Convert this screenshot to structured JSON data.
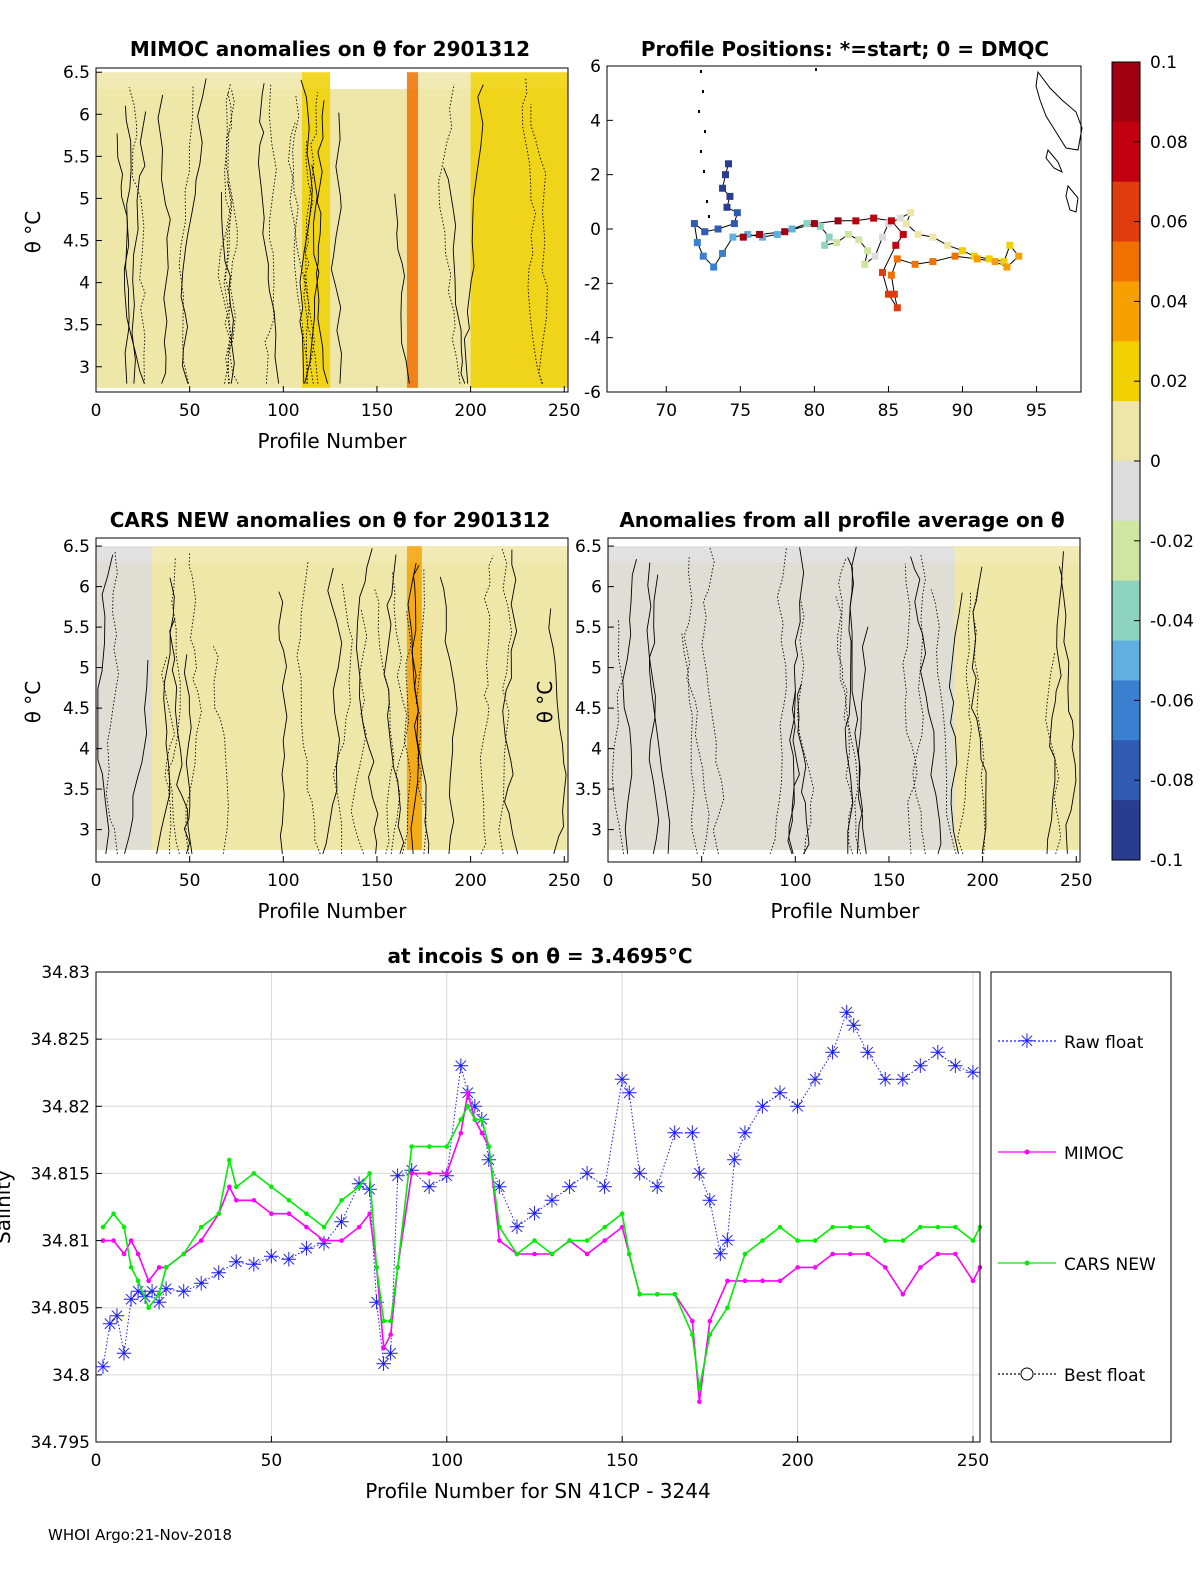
{
  "footer": "WHOI Argo:21-Nov-2018",
  "colorbar": {
    "ticks": [
      "0.1",
      "0.08",
      "0.06",
      "0.04",
      "0.02",
      "0",
      "-0.02",
      "-0.04",
      "-0.06",
      "-0.08",
      "-0.1"
    ],
    "range": [
      -0.1,
      0.1
    ],
    "colors": [
      "#2a3c8f",
      "#2f5bb3",
      "#3a7fd0",
      "#5fb0e0",
      "#8ed2c0",
      "#cfe6a0",
      "#dcdcdc",
      "#eee6a8",
      "#f0d000",
      "#f5a000",
      "#f07000",
      "#e03c10",
      "#c00010",
      "#a00010"
    ]
  },
  "chart_data": [
    {
      "type": "heatmap",
      "title": "MIMOC anomalies on θ  for 2901312",
      "xlabel": "Profile Number",
      "ylabel": "θ °C",
      "xlim": [
        0,
        252
      ],
      "ylim": [
        2.7,
        6.55
      ],
      "xticks": [
        "0",
        "50",
        "100",
        "150",
        "200",
        "250"
      ],
      "xtick_values": [
        0,
        50,
        100,
        150,
        200,
        250
      ],
      "yticks": [
        "3",
        "3.5",
        "4",
        "4.5",
        "5",
        "5.5",
        "6",
        "6.5"
      ],
      "ytick_values": [
        3,
        3.5,
        4,
        4.5,
        5,
        5.5,
        6,
        6.5
      ],
      "bands": [
        {
          "x0": 0,
          "x1": 110,
          "value": 0.0
        },
        {
          "x0": 110,
          "x1": 125,
          "value": 0.018
        },
        {
          "x0": 166,
          "x1": 172,
          "value": 0.045
        },
        {
          "x0": 172,
          "x1": 200,
          "value": 0.012
        },
        {
          "x0": 200,
          "x1": 252,
          "value": 0.025
        }
      ]
    },
    {
      "type": "scatter",
      "title": "Profile Positions: *=start; 0 = DMQC",
      "xlim": [
        66,
        98
      ],
      "ylim": [
        -6,
        6
      ],
      "xticks": [
        "70",
        "75",
        "80",
        "85",
        "90",
        "95"
      ],
      "xtick_values": [
        70,
        75,
        80,
        85,
        90,
        95
      ],
      "yticks": [
        "6",
        "4",
        "2",
        "0",
        "-2",
        "-4",
        "-6"
      ],
      "ytick_values": [
        6,
        4,
        2,
        0,
        -2,
        -4,
        -6
      ],
      "track": [
        [
          74.2,
          2.4
        ],
        [
          74.0,
          2.0
        ],
        [
          73.8,
          1.5
        ],
        [
          74.3,
          1.2
        ],
        [
          74.1,
          0.8
        ],
        [
          74.8,
          0.6
        ],
        [
          74.6,
          0.2
        ],
        [
          73.5,
          0.0
        ],
        [
          72.6,
          -0.1
        ],
        [
          71.9,
          0.2
        ],
        [
          72.1,
          -0.5
        ],
        [
          72.5,
          -1.0
        ],
        [
          73.2,
          -1.4
        ],
        [
          73.8,
          -0.9
        ],
        [
          74.5,
          -0.3
        ],
        [
          75.5,
          -0.2
        ],
        [
          76.5,
          -0.3
        ],
        [
          77.5,
          -0.2
        ],
        [
          78.5,
          0.0
        ],
        [
          79.5,
          0.2
        ],
        [
          80.4,
          0.1
        ],
        [
          81.0,
          -0.3
        ],
        [
          80.7,
          -0.6
        ],
        [
          81.5,
          -0.5
        ],
        [
          82.3,
          -0.2
        ],
        [
          83.0,
          -0.4
        ],
        [
          83.6,
          -0.8
        ],
        [
          83.4,
          -1.3
        ],
        [
          84.1,
          -1.0
        ],
        [
          84.6,
          -0.3
        ],
        [
          85.0,
          0.2
        ],
        [
          85.8,
          0.4
        ],
        [
          86.5,
          0.6
        ],
        [
          86.2,
          0.2
        ],
        [
          87.0,
          -0.2
        ],
        [
          88.0,
          -0.3
        ],
        [
          89.0,
          -0.6
        ],
        [
          90.0,
          -0.8
        ],
        [
          90.8,
          -1.0
        ],
        [
          91.8,
          -1.1
        ],
        [
          92.8,
          -1.2
        ],
        [
          93.2,
          -0.6
        ],
        [
          93.8,
          -1.0
        ],
        [
          93.0,
          -1.4
        ],
        [
          92.2,
          -1.2
        ],
        [
          91.0,
          -1.1
        ],
        [
          89.5,
          -1.0
        ],
        [
          88.0,
          -1.2
        ],
        [
          86.8,
          -1.3
        ],
        [
          85.6,
          -1.1
        ],
        [
          85.2,
          -1.7
        ],
        [
          85.4,
          -2.4
        ],
        [
          85.6,
          -2.9
        ],
        [
          85.0,
          -2.4
        ],
        [
          84.6,
          -1.6
        ],
        [
          85.5,
          -0.6
        ],
        [
          86.0,
          -0.2
        ],
        [
          85.2,
          0.3
        ],
        [
          84.0,
          0.4
        ],
        [
          82.8,
          0.3
        ],
        [
          81.6,
          0.3
        ],
        [
          80.0,
          0.2
        ],
        [
          78.0,
          -0.1
        ],
        [
          76.3,
          -0.2
        ],
        [
          75.2,
          -0.3
        ]
      ]
    },
    {
      "type": "heatmap",
      "title": "CARS NEW anomalies on θ for 2901312",
      "xlabel": "Profile Number",
      "ylabel": "θ °C",
      "xlim": [
        0,
        252
      ],
      "ylim": [
        2.6,
        6.6
      ],
      "xticks": [
        "0",
        "50",
        "100",
        "150",
        "200",
        "250"
      ],
      "xtick_values": [
        0,
        50,
        100,
        150,
        200,
        250
      ],
      "yticks": [
        "3",
        "3.5",
        "4",
        "4.5",
        "5",
        "5.5",
        "6",
        "6.5"
      ],
      "ytick_values": [
        3,
        3.5,
        4,
        4.5,
        5,
        5.5,
        6,
        6.5
      ],
      "bands": [
        {
          "x0": 0,
          "x1": 30,
          "value": -0.004
        },
        {
          "x0": 30,
          "x1": 150,
          "value": 0.0
        },
        {
          "x0": 150,
          "x1": 166,
          "value": 0.012
        },
        {
          "x0": 166,
          "x1": 174,
          "value": 0.04
        },
        {
          "x0": 174,
          "x1": 252,
          "value": 0.012
        }
      ]
    },
    {
      "type": "heatmap",
      "title": "Anomalies from all profile average on θ",
      "xlabel": "Profile Number",
      "ylabel": "θ °C",
      "xlim": [
        0,
        252
      ],
      "ylim": [
        2.6,
        6.6
      ],
      "xticks": [
        "0",
        "50",
        "100",
        "150",
        "200",
        "250"
      ],
      "xtick_values": [
        0,
        50,
        100,
        150,
        200,
        250
      ],
      "yticks": [
        "3",
        "3.5",
        "4",
        "4.5",
        "5",
        "5.5",
        "6",
        "6.5"
      ],
      "ytick_values": [
        3,
        3.5,
        4,
        4.5,
        5,
        5.5,
        6,
        6.5
      ],
      "bands": [
        {
          "x0": 0,
          "x1": 40,
          "value": -0.008
        },
        {
          "x0": 40,
          "x1": 160,
          "value": -0.002
        },
        {
          "x0": 160,
          "x1": 185,
          "value": -0.01
        },
        {
          "x0": 185,
          "x1": 252,
          "value": 0.004
        }
      ]
    },
    {
      "type": "line",
      "title": "at incois S on θ = 3.4695°C",
      "xlabel": "Profile Number for SN 41CP - 3244",
      "ylabel": "Salinity",
      "xlim": [
        0,
        252
      ],
      "ylim": [
        34.795,
        34.83
      ],
      "xticks": [
        "0",
        "50",
        "100",
        "150",
        "200",
        "250"
      ],
      "xtick_values": [
        0,
        50,
        100,
        150,
        200,
        250
      ],
      "yticks": [
        "34.795",
        "34.8",
        "34.805",
        "34.81",
        "34.815",
        "34.82",
        "34.825",
        "34.83"
      ],
      "ytick_values": [
        34.795,
        34.8,
        34.805,
        34.81,
        34.815,
        34.82,
        34.825,
        34.83
      ],
      "legend": [
        "Raw float",
        "MIMOC",
        "CARS NEW",
        "Best float"
      ],
      "series": [
        {
          "name": "Raw float",
          "color": "#1a1aff",
          "marker": "star",
          "dotted": true,
          "x": [
            2,
            4,
            6,
            8,
            10,
            12,
            14,
            16,
            18,
            20,
            25,
            30,
            35,
            40,
            45,
            50,
            55,
            60,
            65,
            70,
            75,
            78,
            80,
            82,
            84,
            86,
            90,
            95,
            100,
            104,
            106,
            108,
            110,
            112,
            115,
            120,
            125,
            130,
            135,
            140,
            145,
            150,
            152,
            155,
            160,
            165,
            170,
            172,
            175,
            178,
            180,
            182,
            185,
            190,
            195,
            200,
            205,
            210,
            214,
            216,
            220,
            225,
            230,
            235,
            240,
            245,
            250
          ],
          "values": [
            34.8006,
            34.8038,
            34.8044,
            34.8016,
            34.8056,
            34.8062,
            34.8058,
            34.8062,
            34.8054,
            34.8064,
            34.8062,
            34.8068,
            34.8076,
            34.8084,
            34.8082,
            34.8088,
            34.8086,
            34.8094,
            34.8098,
            34.8114,
            34.8142,
            34.8138,
            34.8054,
            34.8008,
            34.8016,
            34.8148,
            34.8152,
            34.814,
            34.8148,
            34.823,
            34.821,
            34.82,
            34.819,
            34.816,
            34.814,
            34.811,
            34.812,
            34.813,
            34.814,
            34.815,
            34.814,
            34.822,
            34.821,
            34.815,
            34.814,
            34.818,
            34.818,
            34.815,
            34.813,
            34.809,
            34.81,
            34.816,
            34.818,
            34.82,
            34.821,
            34.82,
            34.822,
            34.824,
            34.827,
            34.826,
            34.824,
            34.822,
            34.822,
            34.823,
            34.824,
            34.823,
            34.8225
          ]
        },
        {
          "name": "MIMOC",
          "color": "#ff00ff",
          "marker": "dot",
          "dotted": false,
          "x": [
            2,
            5,
            8,
            10,
            12,
            15,
            18,
            20,
            25,
            30,
            35,
            38,
            40,
            45,
            50,
            55,
            60,
            65,
            70,
            75,
            78,
            80,
            82,
            84,
            86,
            90,
            95,
            100,
            104,
            106,
            108,
            110,
            112,
            115,
            120,
            125,
            130,
            135,
            140,
            145,
            150,
            152,
            155,
            160,
            165,
            170,
            172,
            175,
            180,
            185,
            190,
            195,
            200,
            205,
            210,
            215,
            220,
            225,
            230,
            235,
            240,
            245,
            250,
            252
          ],
          "values": [
            34.81,
            34.81,
            34.809,
            34.81,
            34.809,
            34.807,
            34.808,
            34.808,
            34.809,
            34.81,
            34.812,
            34.814,
            34.813,
            34.813,
            34.812,
            34.812,
            34.811,
            34.81,
            34.81,
            34.811,
            34.812,
            34.808,
            34.802,
            34.803,
            34.808,
            34.815,
            34.815,
            34.815,
            34.818,
            34.821,
            34.819,
            34.818,
            34.817,
            34.81,
            34.809,
            34.809,
            34.809,
            34.81,
            34.809,
            34.81,
            34.811,
            34.809,
            34.806,
            34.806,
            34.806,
            34.804,
            34.798,
            34.804,
            34.807,
            34.807,
            34.807,
            34.807,
            34.808,
            34.808,
            34.809,
            34.809,
            34.809,
            34.808,
            34.806,
            34.808,
            34.809,
            34.809,
            34.807,
            34.808
          ]
        },
        {
          "name": "CARS NEW",
          "color": "#00ee00",
          "marker": "dot",
          "dotted": false,
          "x": [
            2,
            5,
            8,
            10,
            12,
            15,
            18,
            20,
            25,
            30,
            35,
            38,
            40,
            45,
            50,
            55,
            60,
            65,
            70,
            75,
            78,
            80,
            82,
            84,
            86,
            90,
            95,
            100,
            104,
            106,
            108,
            110,
            112,
            115,
            120,
            125,
            130,
            135,
            140,
            145,
            150,
            152,
            155,
            160,
            165,
            170,
            172,
            175,
            180,
            185,
            190,
            195,
            200,
            205,
            210,
            215,
            220,
            225,
            230,
            235,
            240,
            245,
            250,
            252
          ],
          "values": [
            34.811,
            34.812,
            34.811,
            34.808,
            34.807,
            34.805,
            34.806,
            34.808,
            34.809,
            34.811,
            34.812,
            34.816,
            34.814,
            34.815,
            34.814,
            34.813,
            34.812,
            34.811,
            34.813,
            34.814,
            34.815,
            34.808,
            34.804,
            34.804,
            34.808,
            34.817,
            34.817,
            34.817,
            34.819,
            34.82,
            34.819,
            34.819,
            34.817,
            34.811,
            34.809,
            34.81,
            34.809,
            34.81,
            34.81,
            34.811,
            34.812,
            34.809,
            34.806,
            34.806,
            34.806,
            34.803,
            34.799,
            34.803,
            34.805,
            34.809,
            34.81,
            34.811,
            34.81,
            34.81,
            34.811,
            34.811,
            34.811,
            34.81,
            34.81,
            34.811,
            34.811,
            34.811,
            34.81,
            34.811
          ]
        },
        {
          "name": "Best float",
          "color": "#000000",
          "marker": "circle",
          "dotted": true,
          "x": [],
          "values": []
        }
      ]
    }
  ]
}
